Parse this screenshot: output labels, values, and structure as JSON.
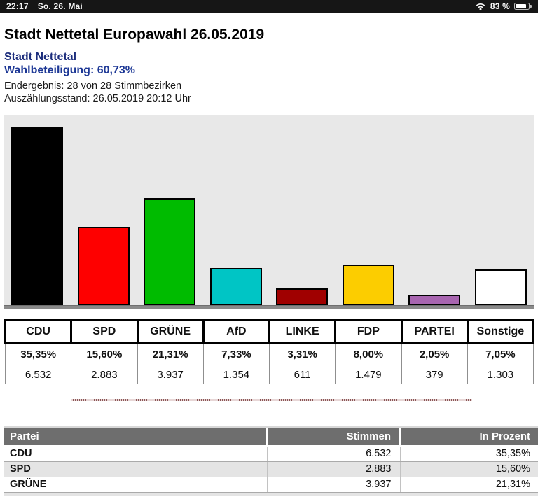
{
  "status_bar": {
    "time": "22:17",
    "date": "So. 26. Mai",
    "battery_percent": "83 %",
    "battery_level": 0.83,
    "wifi_icon": "wifi-icon",
    "battery_icon": "battery-icon"
  },
  "header": {
    "title": "Stadt Nettetal Europawahl 26.05.2019",
    "municipality": "Stadt Nettetal",
    "turnout": "Wahlbeteiligung: 60,73%",
    "final_result": "Endergebnis: 28 von 28 Stimmbezirken",
    "count_status": "Auszählungsstand: 26.05.2019 20:12 Uhr"
  },
  "chart_data": {
    "type": "bar",
    "title": "",
    "xlabel": "",
    "ylabel": "",
    "categories": [
      "CDU",
      "SPD",
      "GRÜNE",
      "AfD",
      "LINKE",
      "FDP",
      "PARTEI",
      "Sonstige"
    ],
    "values_percent": [
      35.35,
      15.6,
      21.31,
      7.33,
      3.31,
      8.0,
      2.05,
      7.05
    ],
    "values_votes": [
      6532,
      2883,
      3937,
      1354,
      611,
      1479,
      379,
      1303
    ],
    "colors": [
      "#000000",
      "#fe0000",
      "#00bb00",
      "#00c5c5",
      "#a00000",
      "#fccd00",
      "#a865b0",
      "#ffffff"
    ],
    "bar_border_color": "#000000",
    "background": "#e8e8e8",
    "baseline_color": "#8a8a8a",
    "ylim": [
      0,
      37.8
    ],
    "grid": false,
    "legend": false
  },
  "summary_table": {
    "columns": [
      {
        "party": "CDU",
        "percent": "35,35%",
        "votes": "6.532"
      },
      {
        "party": "SPD",
        "percent": "15,60%",
        "votes": "2.883"
      },
      {
        "party": "GRÜNE",
        "percent": "21,31%",
        "votes": "3.937"
      },
      {
        "party": "AfD",
        "percent": "7,33%",
        "votes": "1.354"
      },
      {
        "party": "LINKE",
        "percent": "3,31%",
        "votes": "611"
      },
      {
        "party": "FDP",
        "percent": "8,00%",
        "votes": "1.479"
      },
      {
        "party": "PARTEI",
        "percent": "2,05%",
        "votes": "379"
      },
      {
        "party": "Sonstige",
        "percent": "7,05%",
        "votes": "1.303"
      }
    ]
  },
  "results_table": {
    "headers": [
      "Partei",
      "Stimmen",
      "In Prozent"
    ],
    "header_bg": "#6e6e6e",
    "alt_row_bg": "#e4e4e4",
    "rows": [
      {
        "party": "CDU",
        "votes": "6.532",
        "percent": "35,35%"
      },
      {
        "party": "SPD",
        "votes": "2.883",
        "percent": "15,60%"
      },
      {
        "party": "GRÜNE",
        "votes": "3.937",
        "percent": "21,31%"
      }
    ]
  },
  "divider_color": "#8a5555"
}
